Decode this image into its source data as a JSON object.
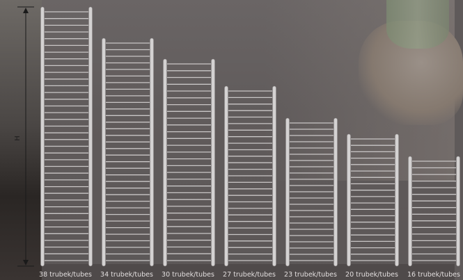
{
  "diagram": {
    "dimension_label": "H",
    "radiators": [
      {
        "caption": "38 trubek/tubes",
        "tubes": 38
      },
      {
        "caption": "34 trubek/tubes",
        "tubes": 34
      },
      {
        "caption": "30 trubek/tubes",
        "tubes": 30
      },
      {
        "caption": "27 trubek/tubes",
        "tubes": 27
      },
      {
        "caption": "23 trubek/tubes",
        "tubes": 23
      },
      {
        "caption": "20 trubek/tubes",
        "tubes": 20
      },
      {
        "caption": "16 trubek/tubes",
        "tubes": 16
      }
    ]
  },
  "colors": {
    "rail": "#d4d2d2",
    "tube": "#c9c6c6",
    "dimension_line": "#1a1a1a",
    "caption_text": "#e2dede"
  },
  "icons": {
    "arrow_up": "dimension-arrow-up-icon",
    "arrow_down": "dimension-arrow-down-icon"
  }
}
